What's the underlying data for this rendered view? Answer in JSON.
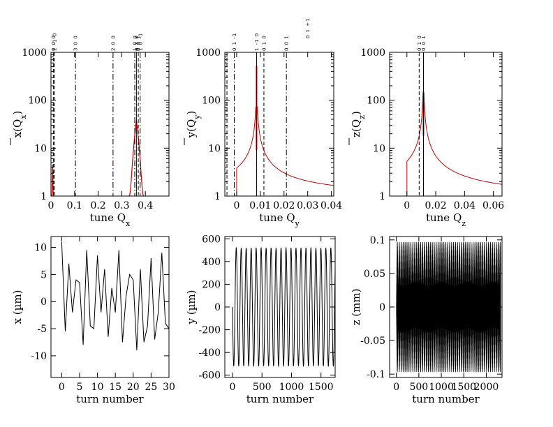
{
  "figure": {
    "colors": {
      "spectrum": "#cc0000",
      "signal": "#000000",
      "resonance": "#000000",
      "frame": "#000000"
    }
  },
  "chart_data": [
    {
      "id": "spec-x",
      "type": "line",
      "scale_y": "log",
      "xlim": [
        0,
        0.5
      ],
      "ylim": [
        1,
        1000
      ],
      "xticks": [
        0,
        0.1,
        0.2,
        0.3,
        0.4,
        0.5
      ],
      "xtick_labels": [
        "0",
        "0.1",
        "0.2",
        "0.3",
        "0.4"
      ],
      "yticks": [
        1,
        10,
        100,
        1000
      ],
      "ytick_labels": [
        "1",
        "10",
        "100",
        "1000"
      ],
      "xlabel": "tune Q",
      "xlabel_sub": "x",
      "ylabel": "x(Q",
      "ylabel_sub": "x",
      "ylabel_end": ")",
      "ylabel_overline": true,
      "peaks": [
        {
          "center": 0.007,
          "peak": 4.5,
          "halfwidth": 0.004,
          "tail": 1
        },
        {
          "center": 0.362,
          "peak": 38,
          "halfwidth": 0.032,
          "tail": 1
        }
      ],
      "resonances": [
        {
          "q": 0.01,
          "style": "dashed",
          "label": "0 0 0"
        },
        {
          "q": 0.015,
          "style": "dashed",
          "label": "1 -1 0"
        },
        {
          "q": 0.104,
          "style": "dashdot",
          "label": "3 0 0"
        },
        {
          "q": 0.263,
          "style": "dashdot",
          "label": "2 0 0"
        },
        {
          "q": 0.355,
          "style": "dashdot",
          "label": "1 0 0"
        },
        {
          "q": 0.362,
          "style": "solid",
          "label": "0 1 0"
        },
        {
          "q": 0.37,
          "style": "dashed",
          "label": "0 0 1"
        },
        {
          "q": 0.378,
          "style": "dashdot",
          "label": "1 0 -1"
        }
      ]
    },
    {
      "id": "spec-y",
      "type": "line",
      "scale_y": "log",
      "xlim": [
        -0.005,
        0.041
      ],
      "ylim": [
        1,
        1000
      ],
      "xticks": [
        0,
        0.01,
        0.02,
        0.03,
        0.04
      ],
      "xtick_labels": [
        "0",
        "0.01",
        "0.02",
        "0.03",
        "0.04"
      ],
      "yticks": [
        1,
        10,
        100,
        1000
      ],
      "ytick_labels": [
        "1",
        "10",
        "100",
        "1000"
      ],
      "xlabel": "tune Q",
      "xlabel_sub": "y",
      "ylabel": "y(Q",
      "ylabel_sub": "y",
      "ylabel_end": ")",
      "ylabel_overline": true,
      "curve": {
        "start": 0,
        "end": 0.041,
        "center": 0.0084,
        "amp": 0.025,
        "floor": 0.9
      },
      "spike": {
        "q": 0.0084,
        "top": 520
      },
      "resonances": [
        {
          "q": -0.0041,
          "style": "dashed",
          "label": ""
        },
        {
          "q": -0.001,
          "style": "dashdot",
          "label": "0 1 -1"
        },
        {
          "q": 0.0084,
          "style": "solid",
          "label": "1 -1 0"
        },
        {
          "q": 0.0115,
          "style": "dashed",
          "label": "0 1 0"
        },
        {
          "q": 0.021,
          "style": "dashdot",
          "label": "0 0 1"
        }
      ],
      "extra_labels": [
        {
          "q": 0.03,
          "label": "0 1 +1"
        }
      ]
    },
    {
      "id": "spec-z",
      "type": "line",
      "scale_y": "log",
      "xlim": [
        -0.012,
        0.066
      ],
      "ylim": [
        1,
        1000
      ],
      "xticks": [
        0,
        0.02,
        0.04,
        0.06
      ],
      "xtick_labels": [
        "0",
        "0.02",
        "0.04",
        "0.06"
      ],
      "yticks": [
        1,
        10,
        100,
        1000
      ],
      "ytick_labels": [
        "1",
        "10",
        "100",
        "1000"
      ],
      "xlabel": "tune Q",
      "xlabel_sub": "z",
      "ylabel": "z(Q",
      "ylabel_sub": "z",
      "ylabel_end": ")",
      "ylabel_overline": true,
      "curve": {
        "start": 0,
        "end": 0.066,
        "center": 0.0115,
        "amp": 0.052,
        "floor": 0.8
      },
      "spike": {
        "q": 0.0115,
        "top": 130
      },
      "resonances": [
        {
          "q": 0.0085,
          "style": "dashed",
          "label": "0 1 0"
        },
        {
          "q": 0.0115,
          "style": "solid",
          "label": "0 0 1"
        }
      ]
    },
    {
      "id": "signal-x",
      "type": "line",
      "xlim": [
        -3,
        30
      ],
      "ylim": [
        -14,
        12
      ],
      "xticks": [
        0,
        5,
        10,
        15,
        20,
        25,
        30
      ],
      "xtick_labels": [
        "0",
        "5",
        "10",
        "15",
        "20",
        "25",
        "30"
      ],
      "yticks": [
        -10,
        -5,
        0,
        5,
        10
      ],
      "ytick_labels": [
        "-10",
        "-5",
        "0",
        "5",
        "10"
      ],
      "xlabel": "turn number",
      "ylabel": "x (µm)",
      "x": [
        0,
        1,
        2,
        3,
        4,
        5,
        6,
        7,
        8,
        9,
        10,
        11,
        12,
        13,
        14,
        15,
        16,
        17,
        18,
        19,
        20,
        21,
        22,
        23,
        24,
        25,
        26,
        27,
        28,
        29,
        30
      ],
      "y": [
        11,
        -5.5,
        7,
        -2,
        4,
        3.5,
        -8,
        9.5,
        -4.5,
        -5,
        8.5,
        -2,
        6,
        -6.5,
        2.5,
        -2,
        9.5,
        -7.5,
        1,
        5,
        4,
        -9,
        6,
        -7.5,
        -4.5,
        8,
        -7,
        -2,
        9,
        -4,
        -5
      ]
    },
    {
      "id": "signal-y",
      "type": "line",
      "xlim": [
        -130,
        1740
      ],
      "ylim": [
        -620,
        620
      ],
      "xticks": [
        0,
        500,
        1000,
        1500
      ],
      "xtick_labels": [
        "0",
        "500",
        "1000",
        "1500"
      ],
      "yticks": [
        -600,
        -400,
        -200,
        0,
        200,
        400,
        600
      ],
      "ytick_labels": [
        "-600",
        "-400",
        "-200",
        "0",
        "200",
        "400",
        "600"
      ],
      "xlabel": "turn number",
      "ylabel": "y (µm)",
      "oscillation": {
        "amplitude": 520,
        "period": 84.4,
        "phase": 0.25,
        "start": 0,
        "end": 1740,
        "step": 2
      }
    },
    {
      "id": "signal-z",
      "type": "line",
      "xlim": [
        -150,
        2350
      ],
      "ylim": [
        -0.105,
        0.105
      ],
      "xticks": [
        0,
        500,
        1000,
        1500,
        2000
      ],
      "xtick_labels": [
        "0",
        "500",
        "1000",
        "1500",
        "2000"
      ],
      "yticks": [
        -0.1,
        -0.05,
        0,
        0.05,
        0.1
      ],
      "ytick_labels": [
        "-0.1",
        "-0.05",
        "0",
        "0.05",
        "0.1"
      ],
      "xlabel": "turn number",
      "ylabel": "z (mm)",
      "oscillation": {
        "amplitude": 0.097,
        "period": 86.3,
        "phase": 0.25,
        "start": 0,
        "end": 2320,
        "step": 1,
        "fast_period": 1.0
      }
    }
  ]
}
